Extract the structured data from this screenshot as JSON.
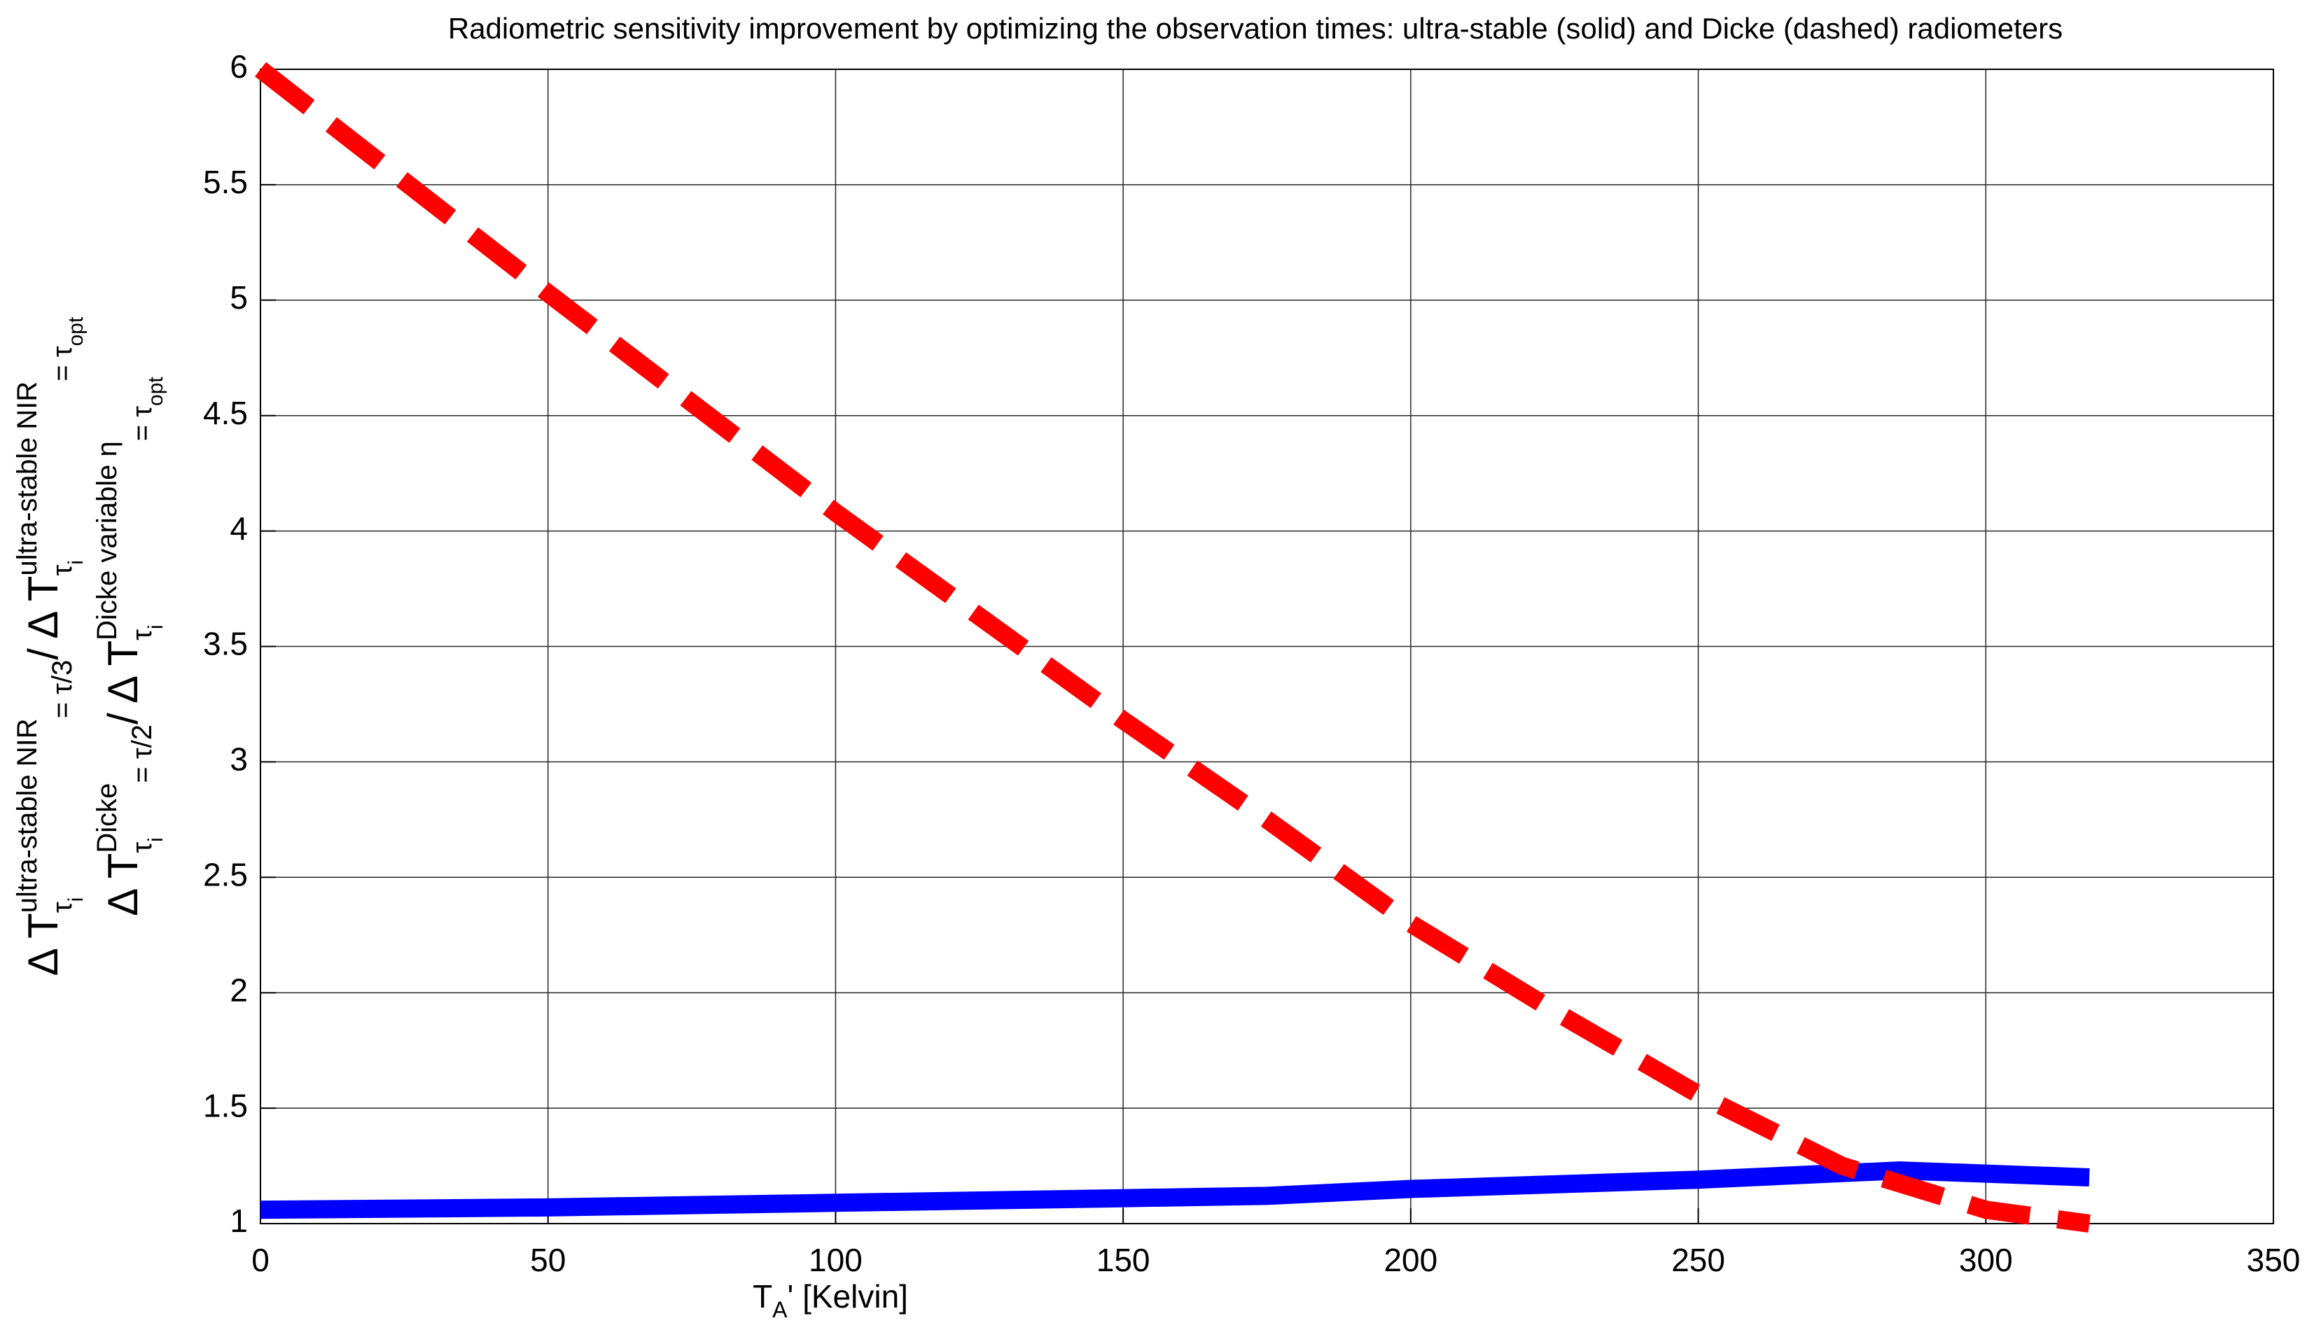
{
  "chart_data": {
    "type": "line",
    "title": "Radiometric sensitivity improvement by optimizing the observation times: ultra-stable (solid) and Dicke (dashed) radiometers",
    "xlabel": [
      "T",
      "A",
      "' [Kelvin]"
    ],
    "ylabel": [
      [
        "Δ T",
        "ultra-stable NIR",
        "τ",
        "i",
        "= τ/3",
        " / Δ T",
        "ultra-stable NIR",
        "τ",
        "i",
        "= τ",
        "opt"
      ],
      [
        "Δ T",
        "Dicke",
        "τ",
        "i",
        "= τ/2",
        " / Δ T",
        "Dicke variable η",
        "τ",
        "i",
        "= τ",
        "opt"
      ]
    ],
    "xlim": [
      0,
      350
    ],
    "ylim": [
      1,
      6
    ],
    "xticks": [
      0,
      50,
      100,
      150,
      200,
      250,
      300,
      350
    ],
    "yticks": [
      1,
      1.5,
      2,
      2.5,
      3,
      3.5,
      4,
      4.5,
      5,
      5.5,
      6
    ],
    "grid": true,
    "series": [
      {
        "color": "#0000ff",
        "style": "solid",
        "x": [
          0,
          50,
          100,
          150,
          175,
          200,
          250,
          285,
          318
        ],
        "values": [
          1.06,
          1.07,
          1.09,
          1.11,
          1.12,
          1.15,
          1.19,
          1.23,
          1.2
        ]
      },
      {
        "color": "#ff0000",
        "style": "dashed",
        "x": [
          0,
          50,
          100,
          150,
          175,
          200,
          225,
          250,
          275,
          300,
          318
        ],
        "values": [
          6.0,
          5.03,
          4.08,
          3.18,
          2.75,
          2.3,
          1.92,
          1.56,
          1.25,
          1.06,
          1.0
        ]
      }
    ]
  }
}
